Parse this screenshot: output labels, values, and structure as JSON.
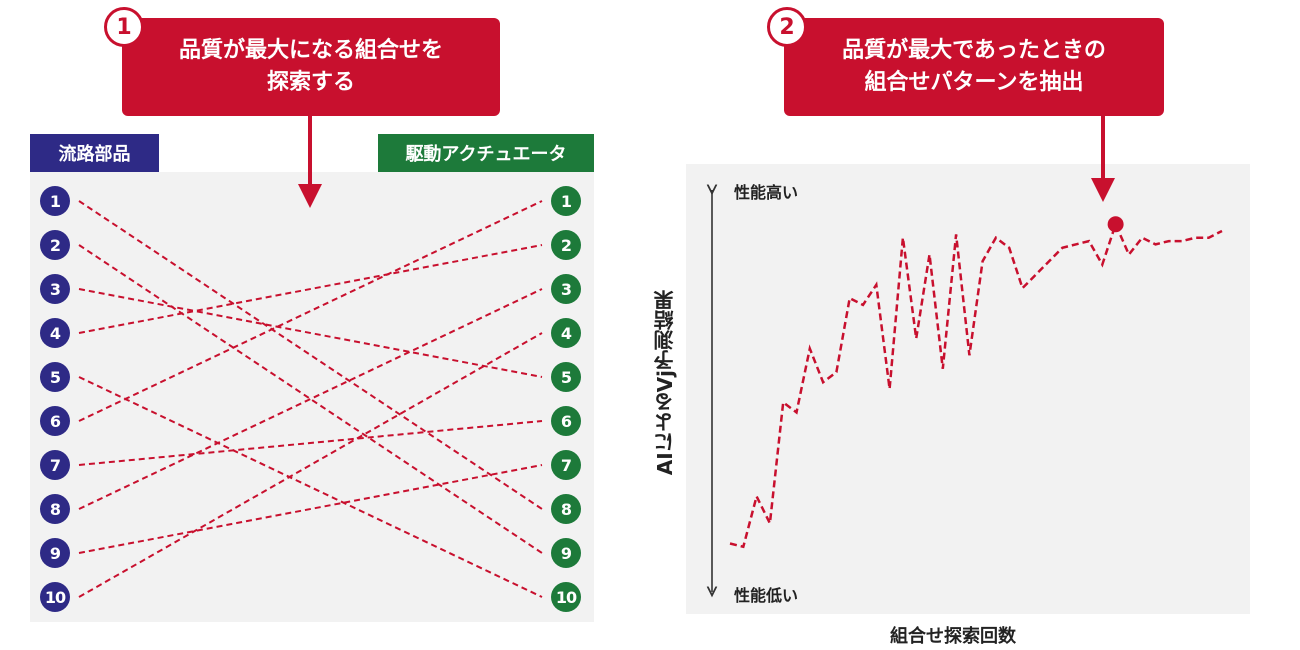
{
  "callout1": {
    "number": "1",
    "line1": "品質が最大になる組合せを",
    "line2": "探索する"
  },
  "callout2": {
    "number": "2",
    "line1": "品質が最大であったときの",
    "line2": "組合せパターンを抽出"
  },
  "left_panel": {
    "left_header": "流路部品",
    "right_header": "駆動アクチュエータ",
    "left_nodes": [
      "1",
      "2",
      "3",
      "4",
      "5",
      "6",
      "7",
      "8",
      "9",
      "10"
    ],
    "right_nodes": [
      "1",
      "2",
      "3",
      "4",
      "5",
      "6",
      "7",
      "8",
      "9",
      "10"
    ],
    "connections": [
      [
        1,
        8
      ],
      [
        2,
        9
      ],
      [
        3,
        5
      ],
      [
        4,
        2
      ],
      [
        5,
        10
      ],
      [
        6,
        1
      ],
      [
        7,
        6
      ],
      [
        8,
        3
      ],
      [
        9,
        7
      ],
      [
        10,
        4
      ]
    ]
  },
  "chart": {
    "y_top_label": "性能高い",
    "y_bottom_label": "性能低い",
    "y_title": "AIによるVj予測結果",
    "x_title": "組合せ探索回数"
  },
  "chart_data": {
    "type": "line",
    "series": [
      {
        "values": [
          0.07,
          0.06,
          0.21,
          0.13,
          0.49,
          0.46,
          0.65,
          0.55,
          0.58,
          0.8,
          0.78,
          0.84,
          0.53,
          0.98,
          0.68,
          0.93,
          0.59,
          0.99,
          0.63,
          0.91,
          0.98,
          0.95,
          0.83,
          0.87,
          0.91,
          0.95,
          0.96,
          0.97,
          0.9,
          1.02,
          0.93,
          0.98,
          0.96,
          0.97,
          0.97,
          0.98,
          0.98,
          1.0
        ],
        "marker_index": 29
      }
    ],
    "colors": {
      "line": "#c8102e"
    }
  }
}
